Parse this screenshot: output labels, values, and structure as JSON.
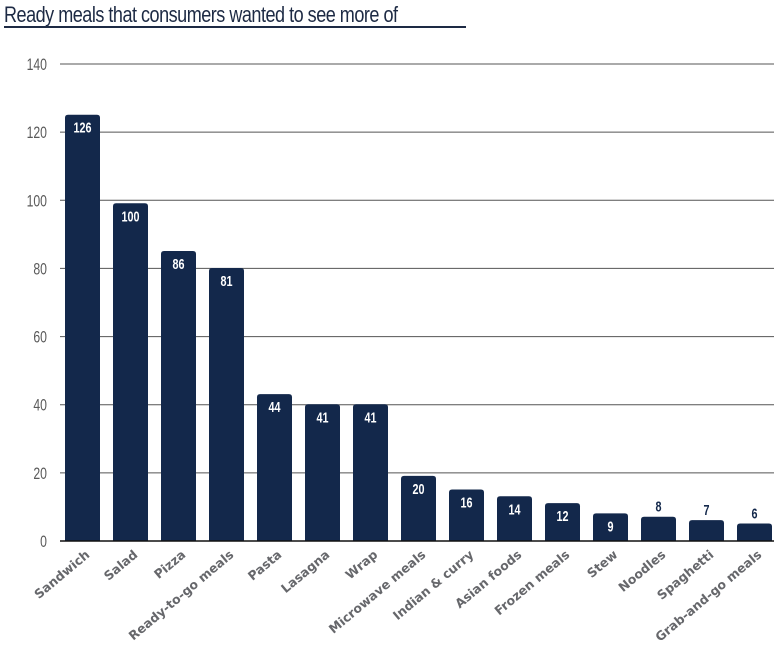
{
  "chart_data": {
    "type": "bar",
    "title": "Ready meals that consumers wanted to see more of",
    "xlabel": "",
    "ylabel": "",
    "ylim": [
      0,
      140
    ],
    "yticks": [
      0,
      20,
      40,
      60,
      80,
      100,
      120,
      140
    ],
    "grid": true,
    "legend": "none",
    "categories": [
      "Sandwich",
      "Salad",
      "Pizza",
      "Ready-to-go meals",
      "Pasta",
      "Lasagna",
      "Wrap",
      "Microwave meals",
      "Indian & curry",
      "Asian foods",
      "Frozen meals",
      "Stew",
      "Noodles",
      "Spaghetti",
      "Grab-and-go meals"
    ],
    "values": [
      126,
      100,
      86,
      81,
      44,
      41,
      41,
      20,
      16,
      14,
      12,
      9,
      8,
      7,
      6
    ],
    "colors": {
      "bar": "#13284b",
      "label_inside": "#ffffff",
      "label_outside": "#13284b",
      "grid": "#555555",
      "axis": "#111111"
    }
  }
}
